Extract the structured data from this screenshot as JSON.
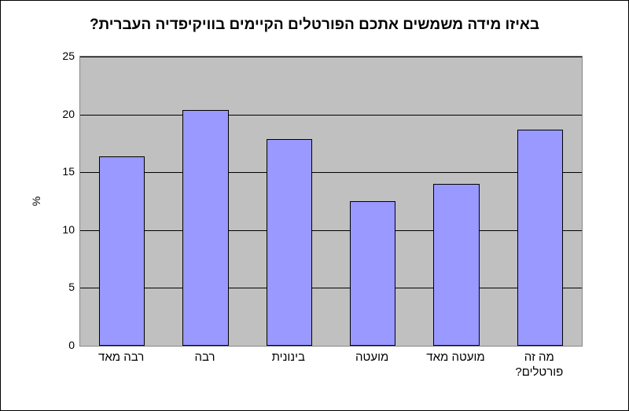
{
  "chart": {
    "type": "bar",
    "title": "באיזו מידה משמשים אתכם הפורטלים הקיימים בוויקיפדיה העברית?",
    "title_fontsize": 19,
    "ylabel": "%",
    "label_fontsize": 14,
    "ylim": [
      0,
      25
    ],
    "ytick_step": 5,
    "yticks": [
      0,
      5,
      10,
      15,
      20,
      25
    ],
    "background_color": "#ffffff",
    "plot_background_color": "#c0c0c0",
    "grid_color": "#000000",
    "axis_color": "#878787",
    "categories": [
      "רבה מאד",
      "רבה",
      "בינונית",
      "מועטה",
      "מועטה מאד",
      "מה זה פורטלים?"
    ],
    "values": [
      16.4,
      20.4,
      17.9,
      12.5,
      14.0,
      18.7
    ],
    "bar_color": "#9999ff",
    "bar_border_color": "#000000",
    "bar_width": 0.55,
    "xlabel_fontsize": 15,
    "tick_fontsize": 14
  }
}
